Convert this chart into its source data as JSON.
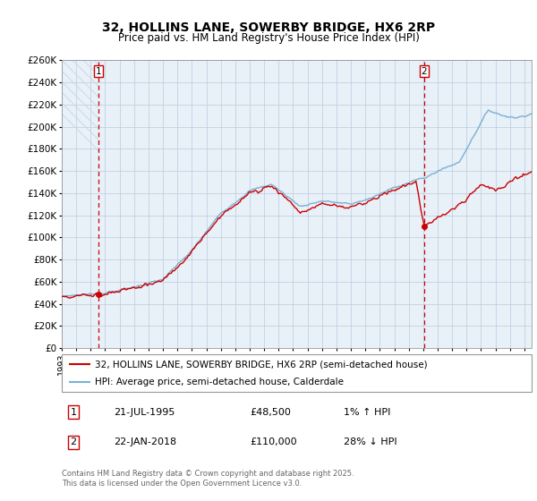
{
  "title": "32, HOLLINS LANE, SOWERBY BRIDGE, HX6 2RP",
  "subtitle": "Price paid vs. HM Land Registry's House Price Index (HPI)",
  "ylim": [
    0,
    260000
  ],
  "yticks": [
    0,
    20000,
    40000,
    60000,
    80000,
    100000,
    120000,
    140000,
    160000,
    180000,
    200000,
    220000,
    240000,
    260000
  ],
  "ytick_labels": [
    "£0",
    "£20K",
    "£40K",
    "£60K",
    "£80K",
    "£100K",
    "£120K",
    "£140K",
    "£160K",
    "£180K",
    "£200K",
    "£220K",
    "£240K",
    "£260K"
  ],
  "xlim_start": 1993.0,
  "xlim_end": 2025.5,
  "sale1_year": 1995.55,
  "sale1_price": 48500,
  "sale1_label": "1",
  "sale2_year": 2018.07,
  "sale2_price": 110000,
  "sale2_label": "2",
  "line_color_price": "#cc0000",
  "line_color_hpi": "#7ab0d4",
  "sale_dot_color": "#cc0000",
  "vline_color": "#cc0000",
  "bg_color": "#e8f0f8",
  "grid_color": "#bbccdd",
  "hatch_color": "#c8d8e8",
  "legend_label_price": "32, HOLLINS LANE, SOWERBY BRIDGE, HX6 2RP (semi-detached house)",
  "legend_label_hpi": "HPI: Average price, semi-detached house, Calderdale",
  "table_row1": [
    "1",
    "21-JUL-1995",
    "£48,500",
    "1% ↑ HPI"
  ],
  "table_row2": [
    "2",
    "22-JAN-2018",
    "£110,000",
    "28% ↓ HPI"
  ],
  "footer": "Contains HM Land Registry data © Crown copyright and database right 2025.\nThis data is licensed under the Open Government Licence v3.0.",
  "title_fontsize": 10,
  "subtitle_fontsize": 8.5,
  "tick_fontsize": 7.5,
  "legend_fontsize": 7.5,
  "table_fontsize": 8,
  "footer_fontsize": 6
}
